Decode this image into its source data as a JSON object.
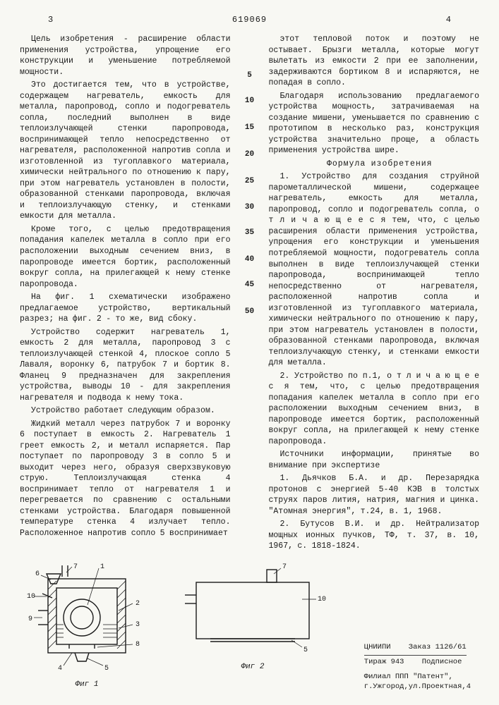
{
  "header": {
    "page_left": "3",
    "doc_number": "619069",
    "page_right": "4"
  },
  "line_markers": [
    "5",
    "10",
    "15",
    "20",
    "25",
    "30",
    "35",
    "40",
    "45",
    "50"
  ],
  "line_marker_positions": [
    34,
    68,
    104,
    140,
    176,
    212,
    246,
    282,
    316,
    352
  ],
  "col_left": {
    "p1": "Цель изобретения - расширение области применения устройства, упрощение его конструкции и уменьшение потребляемой мощности.",
    "p2": "Это достигается тем, что в устройстве, содержащем нагреватель, емкость для металла, паропровод, сопло и подогреватель сопла, последний выполнен в виде теплоизлучающей стенки паропровода, воспринимающей тепло непосредственно от нагревателя, расположенной напротив сопла и изготовленной из тугоплавкого материала, химически нейтрального по отношению к пару, при этом нагреватель установлен в полости, образованной стенками паропровода, включая и теплоизлучающую стенку, и стенками емкости для металла.",
    "p3": "Кроме того, с целью предотвращения попадания капелек металла в сопло при его расположении выходным сечением вниз, в паропроводе имеется бортик, расположенный вокруг сопла, на прилегающей к нему стенке паропровода.",
    "p4": "На фиг. 1 схематически изображено предлагаемое устройство, вертикальный разрез; на фиг. 2 - то же, вид сбоку.",
    "p5": "Устройство содержит нагреватель 1, емкость 2 для металла, паропровод 3 с теплоизлучающей стенкой 4, плоское сопло 5 Лаваля, воронку 6, патрубок 7 и бортик 8. Фланец 9 предназначен для закрепления устройства, выводы 10 - для закрепления нагревателя и подвода к нему тока.",
    "p6": "Устройство работает следующим образом.",
    "p7": "Жидкий металл через патрубок 7 и воронку 6 поступает в емкость 2. Нагреватель 1 греет емкость 2, и металл испаряется. Пар поступает по паропроводу 3 в сопло 5 и выходит через него, образуя сверхзвуковую струю. Теплоизлучающая стенка 4 воспринимает тепло от нагревателя 1 и перегревается по сравнению с остальными стенками устройства. Благодаря повышенной температуре стенка 4 излучает тепло. Расположенное напротив сопло 5 воспринимает"
  },
  "col_right": {
    "p1": "этот тепловой поток и поэтому не остывает. Брызги металла, которые могут вылетать из емкости 2 при ее заполнении, задерживаются бортиком 8 и испаряются, не попадая в сопло.",
    "p2": "Благодаря использованию предлагаемого устройства мощность, затрачиваемая на создание мишени, уменьшается по сравнению с прототипом в несколько раз, конструкция устройства значительно проще, а область применения устройства шире.",
    "formula_title": "Формула изобретения",
    "claim1": "1. Устройство для создания струйной парометаллической мишени, содержащее нагреватель, емкость для металла, паропровод, сопло и подогреватель сопла, о т л и ч а ю щ е е с я тем, что, с целью расширения области применения устройства, упрощения его конструкции и уменьшения потребляемой мощности, подогреватель сопла выполнен в виде теплоизлучающей стенки паропровода, воспринимающей тепло непосредственно от нагревателя, расположенной напротив сопла и изготовленной из тугоплавкого материала, химически нейтрального по отношению к пару, при этом нагреватель установлен в полости, образованной стенками паропровода, включая теплоизлучающую стенку, и стенками емкости для металла.",
    "claim2": "2. Устройство по п.1, о т л и ч а ю щ е е с я тем, что, с целью предотвращения попадания капелек металла в сопло при его расположении выходным сечением вниз, в паропроводе имеется бортик, расположенный вокруг сопла, на прилегающей к нему стенке паропровода.",
    "sources_title": "Источники информации, принятые во внимание при экспертизе",
    "src1": "1. Дьячков Б.А. и др. Перезарядка протонов с энергией 5-40 КЭВ в толстых струях паров лития, натрия, магния и цинка. \"Атомная энергия\", т.24, в. 1, 1968.",
    "src2": "2. Бутусов В.И. и др. Нейтрализатор мощных ионных пучков, ТФ, т. 37, в. 10, 1967, с. 1818-1824."
  },
  "figures": {
    "fig1": {
      "label": "Фиг 1",
      "callouts": [
        "6",
        "7",
        "1",
        "10",
        "9",
        "2",
        "3",
        "4",
        "8",
        "5"
      ],
      "stroke": "#1a1a1a",
      "hatch": "#1a1a1a"
    },
    "fig2": {
      "label": "Фиг 2",
      "callouts": [
        "7",
        "10",
        "5"
      ],
      "stroke": "#1a1a1a"
    }
  },
  "footer": {
    "line1a": "ЦНИИПИ",
    "line1b": "Заказ 1126/61",
    "line2a": "Тираж 943",
    "line2b": "Подписное",
    "line3": "Филиал ППП \"Патент\",",
    "line4": "г.Ужгород,ул.Проектная,4"
  }
}
